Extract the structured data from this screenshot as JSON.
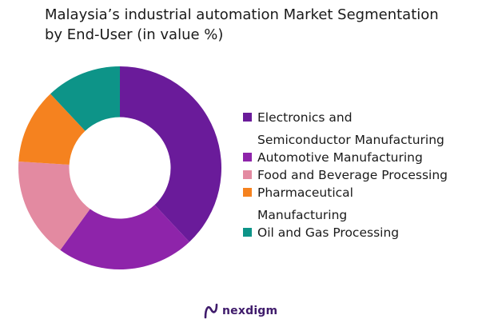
{
  "chart_data": {
    "type": "pie",
    "title_lines": [
      "Malaysia’s industrial automation Market Segmentation",
      "by End-User (in value %)"
    ],
    "series": [
      {
        "name_lines": [
          "Electronics and",
          "Semiconductor Manufacturing"
        ],
        "value": 38,
        "color": "#6a1b9a"
      },
      {
        "name_lines": [
          "Automotive Manufacturing"
        ],
        "value": 22,
        "color": "#8e24aa"
      },
      {
        "name_lines": [
          "Food and Beverage Processing"
        ],
        "value": 16,
        "color": "#e38aa1"
      },
      {
        "name_lines": [
          "Pharmaceutical",
          "Manufacturing"
        ],
        "value": 12,
        "color": "#f5821f"
      },
      {
        "name_lines": [
          "Oil and Gas Processing"
        ],
        "value": 12,
        "color": "#0d9488"
      }
    ],
    "inner_radius_ratio": 0.5,
    "legend_position": "right",
    "grid": false
  },
  "brand": {
    "name": "nexdigm",
    "color": "#3f1b6b"
  }
}
